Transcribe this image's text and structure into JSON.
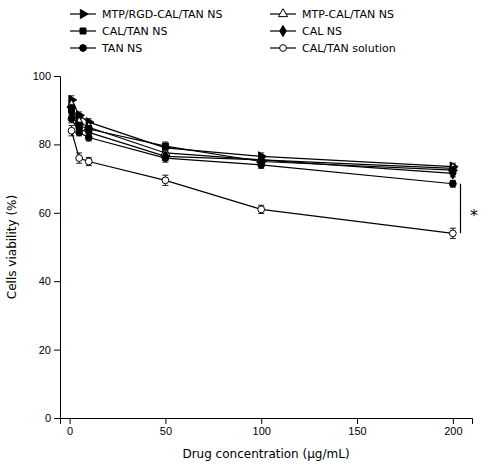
{
  "chart_data": {
    "type": "line",
    "x_label": "Drug concentration (μg/mL)",
    "y_label": "Cells viability (%)",
    "x": [
      1,
      5,
      10,
      50,
      100,
      200
    ],
    "series": [
      {
        "name": "MTP/RGD-CAL/TAN NS",
        "values": [
          93.0,
          88.5,
          86.5,
          79.0,
          76.5,
          73.5
        ],
        "errors": [
          1.2,
          1.0,
          1.0,
          1.2,
          1.0,
          1.0
        ],
        "marker": "triangle-right",
        "color": "black",
        "line_style": "solid"
      },
      {
        "name": "MTP-CAL/TAN NS",
        "values": [
          91.5,
          86.5,
          85.0,
          77.5,
          75.5,
          73.0
        ],
        "errors": [
          1.2,
          1.0,
          1.0,
          1.2,
          1.0,
          1.0
        ],
        "marker": "triangle-up-open",
        "color": "black",
        "line_style": "solid"
      },
      {
        "name": "CAL/TAN NS",
        "values": [
          90.5,
          85.5,
          84.5,
          79.5,
          75.0,
          72.5
        ],
        "errors": [
          1.2,
          1.0,
          1.0,
          1.2,
          1.0,
          1.0
        ],
        "marker": "square",
        "color": "black",
        "line_style": "solid"
      },
      {
        "name": "CAL NS",
        "values": [
          89.5,
          84.5,
          83.5,
          76.5,
          75.5,
          71.5
        ],
        "errors": [
          1.2,
          1.0,
          1.0,
          1.2,
          1.0,
          1.0
        ],
        "marker": "diamond",
        "color": "black",
        "line_style": "solid"
      },
      {
        "name": "TAN NS",
        "values": [
          87.5,
          83.5,
          82.0,
          76.0,
          74.0,
          68.5
        ],
        "errors": [
          1.2,
          1.0,
          1.0,
          1.2,
          1.0,
          1.0
        ],
        "marker": "circle",
        "color": "black",
        "line_style": "solid"
      },
      {
        "name": "CAL/TAN solution",
        "values": [
          84.0,
          76.0,
          75.0,
          69.5,
          61.0,
          54.0
        ],
        "errors": [
          1.5,
          1.5,
          1.2,
          1.5,
          1.2,
          1.5
        ],
        "marker": "circle-open",
        "color": "black",
        "line_style": "solid"
      }
    ],
    "xlim": [
      -5,
      210
    ],
    "ylim": [
      0,
      100
    ],
    "xticks": [
      0,
      50,
      100,
      150,
      200
    ],
    "yticks": [
      0,
      20,
      40,
      60,
      80,
      100
    ],
    "grid": false,
    "legend": "top",
    "annotations": [
      {
        "text": "*",
        "x": 209,
        "y": 61.0,
        "bracket_x": 204,
        "bracket_y": [
          54.0,
          68.5
        ]
      }
    ]
  }
}
